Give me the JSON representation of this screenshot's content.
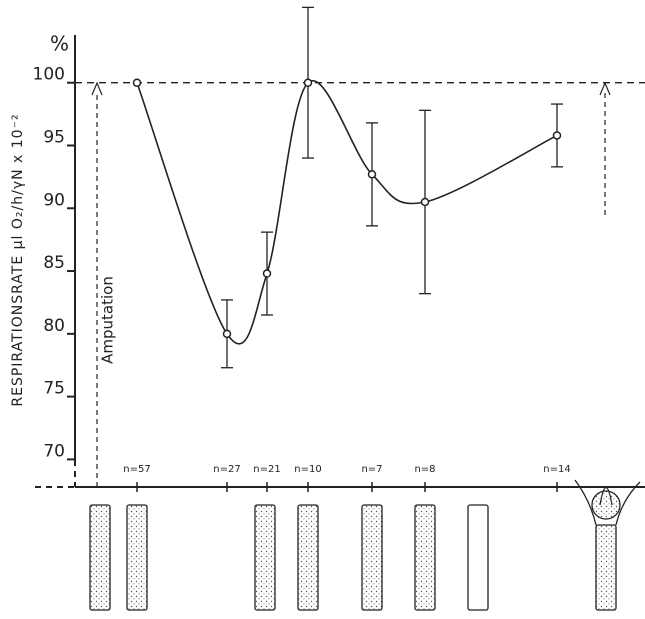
{
  "chart_data": {
    "type": "line",
    "y_label": "RESPIRATIONSRATE µl O₂/h/γN x 10⁻²",
    "y_unit": "%",
    "annotation": "Amputation",
    "categories": [
      "n=57",
      "n=27",
      "n=21",
      "n=10",
      "n=7",
      "n=8",
      "n=14"
    ],
    "series": [
      {
        "color": "#222222",
        "values": [
          100,
          80,
          84.8,
          100,
          92.7,
          90.5,
          95.8
        ],
        "errors": [
          null,
          2.7,
          3.3,
          6,
          4.1,
          7.3,
          2.5
        ]
      }
    ],
    "reference_line": 100,
    "ylim": [
      67.8,
      103.8
    ],
    "yticks": [
      70,
      75,
      80,
      85,
      90,
      95,
      100
    ]
  }
}
